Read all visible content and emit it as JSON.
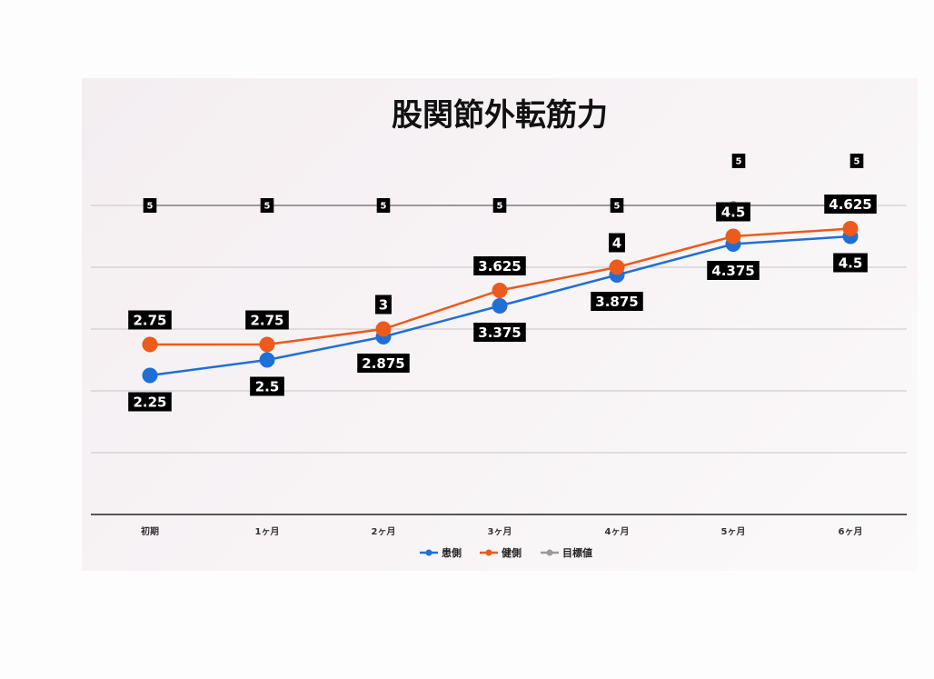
{
  "chart_data": {
    "type": "line",
    "title": "股関節外転筋力",
    "categories": [
      "初期",
      "1ヶ月",
      "2ヶ月",
      "3ヶ月",
      "4ヶ月",
      "5ヶ月",
      "6ヶ月"
    ],
    "ylim": [
      0,
      5
    ],
    "grid": true,
    "legend_position": "bottom",
    "series": [
      {
        "name": "患側",
        "color": "#1f6fd6",
        "values": [
          2.25,
          2.5,
          2.875,
          3.375,
          3.875,
          4.375,
          4.5
        ],
        "labels": [
          "2.25",
          "2.5",
          "2.875",
          "3.375",
          "3.875",
          "4.375",
          "4.5"
        ]
      },
      {
        "name": "健側",
        "color": "#ec5a1c",
        "values": [
          2.75,
          2.75,
          3,
          3.625,
          4,
          4.5,
          4.625
        ],
        "labels": [
          "2.75",
          "2.75",
          "3",
          "3.625",
          "4",
          "4.5",
          "4.625"
        ]
      },
      {
        "name": "目標値",
        "color": "#9a9a9a",
        "values": [
          5,
          5,
          5,
          5,
          5,
          5,
          5
        ],
        "labels": [
          "5",
          "5",
          "5",
          "5",
          "5",
          "5",
          "5"
        ]
      }
    ]
  }
}
